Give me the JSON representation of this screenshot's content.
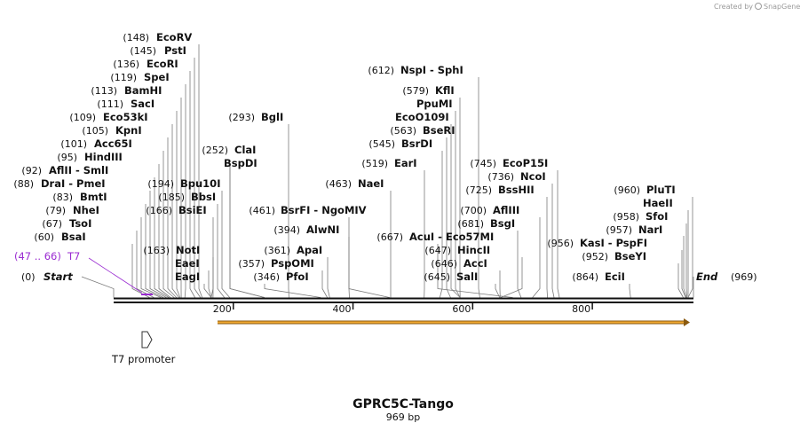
{
  "map_title": "GPRC5C-Tango",
  "map_length": "969 bp",
  "sequence_length": 969,
  "credit": {
    "text": "Created by",
    "brand": "SnapGene",
    "icon": "snapgene-logo-icon"
  },
  "start_marker": {
    "pos": "(0)",
    "name": "Start"
  },
  "end_marker": {
    "pos": "(969)",
    "name": "End"
  },
  "axis_ticks": [
    {
      "value": 200,
      "label": "200"
    },
    {
      "value": 400,
      "label": "400"
    },
    {
      "value": 600,
      "label": "600"
    },
    {
      "value": 800,
      "label": "800"
    }
  ],
  "colors": {
    "primer": "#9a2bd1",
    "orf_bar": "#f0a830",
    "backbone": "#111111",
    "leader": "#7a7a7a"
  },
  "primer": {
    "range": "(47 .. 66)",
    "name": "T7",
    "start": 47,
    "end": 66
  },
  "feature": {
    "name": "T7 promoter",
    "icon": "promoter-arrow-icon"
  },
  "orf": {
    "start": 175,
    "end": 969,
    "direction": "forward"
  },
  "sites": [
    {
      "pos": "(148)",
      "name": "EcoRV",
      "loc": 148
    },
    {
      "pos": "(145)",
      "name": "PstI",
      "loc": 145
    },
    {
      "pos": "(136)",
      "name": "EcoRI",
      "loc": 136
    },
    {
      "pos": "(119)",
      "name": "SpeI",
      "loc": 119
    },
    {
      "pos": "(113)",
      "name": "BamHI",
      "loc": 113
    },
    {
      "pos": "(111)",
      "name": "SacI",
      "loc": 111
    },
    {
      "pos": "(109)",
      "name": "Eco53kI",
      "loc": 109
    },
    {
      "pos": "(105)",
      "name": "KpnI",
      "loc": 105
    },
    {
      "pos": "(101)",
      "name": "Acc65I",
      "loc": 101
    },
    {
      "pos": "(95)",
      "name": "HindIII",
      "loc": 95
    },
    {
      "pos": "(92)",
      "name": "AflII - SmlI",
      "loc": 92
    },
    {
      "pos": "(88)",
      "name": "DraI - PmeI",
      "loc": 88
    },
    {
      "pos": "(83)",
      "name": "BmtI",
      "loc": 83
    },
    {
      "pos": "(79)",
      "name": "NheI",
      "loc": 79
    },
    {
      "pos": "(67)",
      "name": "TsoI",
      "loc": 67
    },
    {
      "pos": "(60)",
      "name": "BsaI",
      "loc": 60
    },
    {
      "pos": "(293)",
      "name": "BglI",
      "loc": 293
    },
    {
      "pos": "(252)",
      "name": "ClaI",
      "loc": 252
    },
    {
      "pos": "",
      "name": "BspDI",
      "loc": 252
    },
    {
      "pos": "(194)",
      "name": "Bpu10I",
      "loc": 194
    },
    {
      "pos": "(185)",
      "name": "BbsI",
      "loc": 185
    },
    {
      "pos": "(166)",
      "name": "BsiEI",
      "loc": 166
    },
    {
      "pos": "(163)",
      "name": "NotI",
      "loc": 163
    },
    {
      "pos": "",
      "name": "EaeI",
      "loc": 163
    },
    {
      "pos": "",
      "name": "EagI",
      "loc": 163
    },
    {
      "pos": "(461)",
      "name": "BsrFI - NgoMIV",
      "loc": 461
    },
    {
      "pos": "(394)",
      "name": "AlwNI",
      "loc": 394
    },
    {
      "pos": "(361)",
      "name": "ApaI",
      "loc": 361
    },
    {
      "pos": "(357)",
      "name": "PspOMI",
      "loc": 357
    },
    {
      "pos": "(346)",
      "name": "PfoI",
      "loc": 346
    },
    {
      "pos": "(463)",
      "name": "NaeI",
      "loc": 463
    },
    {
      "pos": "(612)",
      "name": "NspI - SphI",
      "loc": 612
    },
    {
      "pos": "(579)",
      "name": "KflI",
      "loc": 579
    },
    {
      "pos": "",
      "name": "PpuMI",
      "loc": 579
    },
    {
      "pos": "",
      "name": "EcoO109I",
      "loc": 579
    },
    {
      "pos": "(563)",
      "name": "BseRI",
      "loc": 563
    },
    {
      "pos": "(545)",
      "name": "BsrDI",
      "loc": 545
    },
    {
      "pos": "(519)",
      "name": "EarI",
      "loc": 519
    },
    {
      "pos": "(667)",
      "name": "AcuI - Eco57MI",
      "loc": 667
    },
    {
      "pos": "(647)",
      "name": "HincII",
      "loc": 647
    },
    {
      "pos": "(646)",
      "name": "AccI",
      "loc": 646
    },
    {
      "pos": "(645)",
      "name": "SalI",
      "loc": 645
    },
    {
      "pos": "(745)",
      "name": "EcoP15I",
      "loc": 745
    },
    {
      "pos": "(736)",
      "name": "NcoI",
      "loc": 736
    },
    {
      "pos": "(725)",
      "name": "BssHII",
      "loc": 725
    },
    {
      "pos": "(700)",
      "name": "AflIII",
      "loc": 700
    },
    {
      "pos": "(681)",
      "name": "BsgI",
      "loc": 681
    },
    {
      "pos": "(956)",
      "name": "KasI - PspFI",
      "loc": 956
    },
    {
      "pos": "(952)",
      "name": "BseYI",
      "loc": 952
    },
    {
      "pos": "(864)",
      "name": "EciI",
      "loc": 864
    },
    {
      "pos": "(960)",
      "name": "PluTI",
      "loc": 960
    },
    {
      "pos": "",
      "name": "HaeII",
      "loc": 960
    },
    {
      "pos": "(958)",
      "name": "SfoI",
      "loc": 958
    },
    {
      "pos": "(957)",
      "name": "NarI",
      "loc": 957
    }
  ]
}
